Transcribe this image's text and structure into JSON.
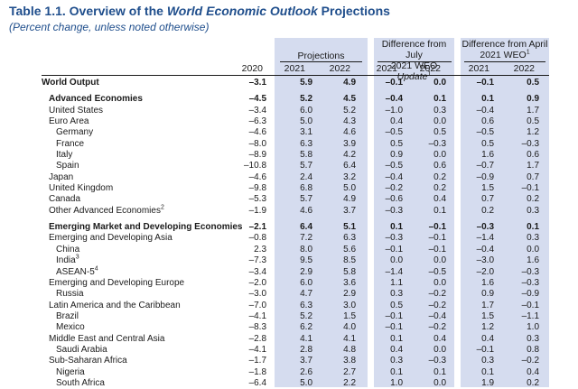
{
  "title_prefix": "Table 1.1. Overview of the ",
  "title_italic": "World Economic Outlook",
  "title_suffix": " Projections",
  "subtitle": "(Percent change, unless noted otherwise)",
  "headers": {
    "projections": "Projections",
    "diff_july_line1": "Difference from July",
    "diff_july_line2a": "2021 WEO ",
    "diff_july_line2b": "Update",
    "diff_july_sup": "1",
    "diff_april_line1": "Difference from April",
    "diff_april_line2": "2021 WEO",
    "diff_april_sup": "1",
    "years": [
      "2020",
      "2021",
      "2022",
      "2021",
      "2022",
      "2021",
      "2022"
    ]
  },
  "rows": [
    {
      "label": "World Output",
      "sup": "",
      "indent": 0,
      "bold": true,
      "gap": false,
      "v": [
        "–3.1",
        "5.9",
        "4.9",
        "–0.1",
        "0.0",
        "–0.1",
        "0.5"
      ]
    },
    {
      "label": "Advanced Economies",
      "sup": "",
      "indent": 1,
      "bold": true,
      "gap": true,
      "v": [
        "–4.5",
        "5.2",
        "4.5",
        "–0.4",
        "0.1",
        "0.1",
        "0.9"
      ]
    },
    {
      "label": "United States",
      "sup": "",
      "indent": 1,
      "bold": false,
      "gap": false,
      "v": [
        "–3.4",
        "6.0",
        "5.2",
        "–1.0",
        "0.3",
        "–0.4",
        "1.7"
      ]
    },
    {
      "label": "Euro Area",
      "sup": "",
      "indent": 1,
      "bold": false,
      "gap": false,
      "v": [
        "–6.3",
        "5.0",
        "4.3",
        "0.4",
        "0.0",
        "0.6",
        "0.5"
      ]
    },
    {
      "label": "Germany",
      "sup": "",
      "indent": 2,
      "bold": false,
      "gap": false,
      "v": [
        "–4.6",
        "3.1",
        "4.6",
        "–0.5",
        "0.5",
        "–0.5",
        "1.2"
      ]
    },
    {
      "label": "France",
      "sup": "",
      "indent": 2,
      "bold": false,
      "gap": false,
      "v": [
        "–8.0",
        "6.3",
        "3.9",
        "0.5",
        "–0.3",
        "0.5",
        "–0.3"
      ]
    },
    {
      "label": "Italy",
      "sup": "",
      "indent": 2,
      "bold": false,
      "gap": false,
      "v": [
        "–8.9",
        "5.8",
        "4.2",
        "0.9",
        "0.0",
        "1.6",
        "0.6"
      ]
    },
    {
      "label": "Spain",
      "sup": "",
      "indent": 2,
      "bold": false,
      "gap": false,
      "v": [
        "–10.8",
        "5.7",
        "6.4",
        "–0.5",
        "0.6",
        "–0.7",
        "1.7"
      ]
    },
    {
      "label": "Japan",
      "sup": "",
      "indent": 1,
      "bold": false,
      "gap": false,
      "v": [
        "–4.6",
        "2.4",
        "3.2",
        "–0.4",
        "0.2",
        "–0.9",
        "0.7"
      ]
    },
    {
      "label": "United Kingdom",
      "sup": "",
      "indent": 1,
      "bold": false,
      "gap": false,
      "v": [
        "–9.8",
        "6.8",
        "5.0",
        "–0.2",
        "0.2",
        "1.5",
        "–0.1"
      ]
    },
    {
      "label": "Canada",
      "sup": "",
      "indent": 1,
      "bold": false,
      "gap": false,
      "v": [
        "–5.3",
        "5.7",
        "4.9",
        "–0.6",
        "0.4",
        "0.7",
        "0.2"
      ]
    },
    {
      "label": "Other Advanced Economies",
      "sup": "2",
      "indent": 1,
      "bold": false,
      "gap": false,
      "v": [
        "–1.9",
        "4.6",
        "3.7",
        "–0.3",
        "0.1",
        "0.2",
        "0.3"
      ]
    },
    {
      "label": "Emerging Market and Developing Economies",
      "sup": "",
      "indent": 1,
      "bold": true,
      "gap": true,
      "v": [
        "–2.1",
        "6.4",
        "5.1",
        "0.1",
        "–0.1",
        "–0.3",
        "0.1"
      ]
    },
    {
      "label": "Emerging and Developing Asia",
      "sup": "",
      "indent": 1,
      "bold": false,
      "gap": false,
      "v": [
        "–0.8",
        "7.2",
        "6.3",
        "–0.3",
        "–0.1",
        "–1.4",
        "0.3"
      ]
    },
    {
      "label": "China",
      "sup": "",
      "indent": 2,
      "bold": false,
      "gap": false,
      "v": [
        "2.3",
        "8.0",
        "5.6",
        "–0.1",
        "–0.1",
        "–0.4",
        "0.0"
      ]
    },
    {
      "label": "India",
      "sup": "3",
      "indent": 2,
      "bold": false,
      "gap": false,
      "v": [
        "–7.3",
        "9.5",
        "8.5",
        "0.0",
        "0.0",
        "–3.0",
        "1.6"
      ]
    },
    {
      "label": "ASEAN-5",
      "sup": "4",
      "indent": 2,
      "bold": false,
      "gap": false,
      "v": [
        "–3.4",
        "2.9",
        "5.8",
        "–1.4",
        "–0.5",
        "–2.0",
        "–0.3"
      ]
    },
    {
      "label": "Emerging and Developing Europe",
      "sup": "",
      "indent": 1,
      "bold": false,
      "gap": false,
      "v": [
        "–2.0",
        "6.0",
        "3.6",
        "1.1",
        "0.0",
        "1.6",
        "–0.3"
      ]
    },
    {
      "label": "Russia",
      "sup": "",
      "indent": 2,
      "bold": false,
      "gap": false,
      "v": [
        "–3.0",
        "4.7",
        "2.9",
        "0.3",
        "–0.2",
        "0.9",
        "–0.9"
      ]
    },
    {
      "label": "Latin America and the Caribbean",
      "sup": "",
      "indent": 1,
      "bold": false,
      "gap": false,
      "v": [
        "–7.0",
        "6.3",
        "3.0",
        "0.5",
        "–0.2",
        "1.7",
        "–0.1"
      ]
    },
    {
      "label": "Brazil",
      "sup": "",
      "indent": 2,
      "bold": false,
      "gap": false,
      "v": [
        "–4.1",
        "5.2",
        "1.5",
        "–0.1",
        "–0.4",
        "1.5",
        "–1.1"
      ]
    },
    {
      "label": "Mexico",
      "sup": "",
      "indent": 2,
      "bold": false,
      "gap": false,
      "v": [
        "–8.3",
        "6.2",
        "4.0",
        "–0.1",
        "–0.2",
        "1.2",
        "1.0"
      ]
    },
    {
      "label": "Middle East and Central Asia",
      "sup": "",
      "indent": 1,
      "bold": false,
      "gap": false,
      "v": [
        "–2.8",
        "4.1",
        "4.1",
        "0.1",
        "0.4",
        "0.4",
        "0.3"
      ]
    },
    {
      "label": "Saudi Arabia",
      "sup": "",
      "indent": 2,
      "bold": false,
      "gap": false,
      "v": [
        "–4.1",
        "2.8",
        "4.8",
        "0.4",
        "0.0",
        "–0.1",
        "0.8"
      ]
    },
    {
      "label": "Sub-Saharan Africa",
      "sup": "",
      "indent": 1,
      "bold": false,
      "gap": false,
      "v": [
        "–1.7",
        "3.7",
        "3.8",
        "0.3",
        "–0.3",
        "0.3",
        "–0.2"
      ]
    },
    {
      "label": "Nigeria",
      "sup": "",
      "indent": 2,
      "bold": false,
      "gap": false,
      "v": [
        "–1.8",
        "2.6",
        "2.7",
        "0.1",
        "0.1",
        "0.1",
        "0.4"
      ]
    },
    {
      "label": "South Africa",
      "sup": "",
      "indent": 2,
      "bold": false,
      "gap": false,
      "v": [
        "–6.4",
        "5.0",
        "2.2",
        "1.0",
        "0.0",
        "1.9",
        "0.2"
      ]
    }
  ]
}
